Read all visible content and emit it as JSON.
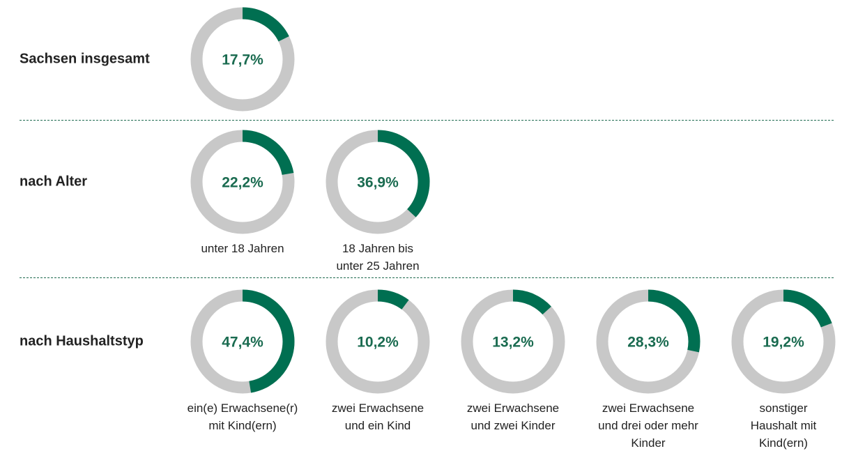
{
  "chart_data": [
    {
      "type": "donut",
      "title": "Sachsen insgesamt",
      "categories": [
        null
      ],
      "values": [
        17.7
      ],
      "value_labels": [
        "17,7%"
      ],
      "color": "#006f51",
      "track_color": "#c8c8c8"
    },
    {
      "type": "donut",
      "title": "nach Alter",
      "categories": [
        "unter 18 Jahren",
        "18 Jahren bis\nunter 25 Jahren"
      ],
      "values": [
        22.2,
        36.9
      ],
      "value_labels": [
        "22,2%",
        "36,9%"
      ],
      "color": "#006f51",
      "track_color": "#c8c8c8"
    },
    {
      "type": "donut",
      "title": "nach Haushaltstyp",
      "categories": [
        "ein(e) Erwachsene(r)\nmit Kind(ern)",
        "zwei Erwachsene\nund ein Kind",
        "zwei Erwachsene\nund zwei Kinder",
        "zwei Erwachsene\nund drei oder mehr\nKinder",
        "sonstiger\nHaushalt mit\nKind(ern)"
      ],
      "values": [
        47.4,
        10.2,
        13.2,
        28.3,
        19.2
      ],
      "value_labels": [
        "47,4%",
        "10,2%",
        "13,2%",
        "28,3%",
        "19,2%"
      ],
      "color": "#006f51",
      "track_color": "#c8c8c8"
    }
  ]
}
